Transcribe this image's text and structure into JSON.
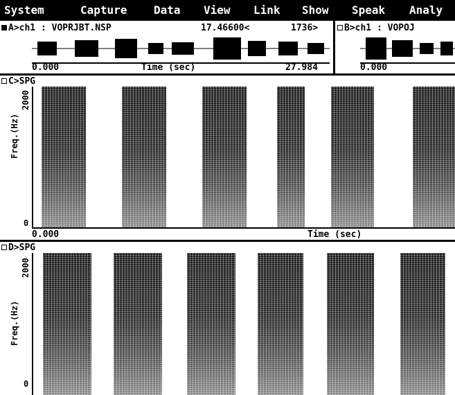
{
  "menu": {
    "items": [
      {
        "label": "System"
      },
      {
        "label": "Capture"
      },
      {
        "label": "Data"
      },
      {
        "label": "View"
      },
      {
        "label": "Link"
      },
      {
        "label": "Show"
      },
      {
        "label": "Speak"
      },
      {
        "label": "Analy"
      }
    ]
  },
  "paneA": {
    "header": "A>ch1 : VOPRJBT.NSP",
    "cursor_time": "17.46600<",
    "cursor_sample": "1736>",
    "x_start": "0.000",
    "x_label": "Time (sec)",
    "x_end": "27.984",
    "indicator": "filled-square-icon"
  },
  "paneB": {
    "header": "B>ch1 : VOPOJ",
    "x_start": "0.000",
    "indicator": "empty-square-icon"
  },
  "paneC": {
    "header": "C>SPG",
    "y_label": "Freq.(Hz)",
    "y_top": "2000",
    "y_bottom": "0",
    "x_start": "0.000",
    "x_label": "Time (sec)",
    "indicator": "empty-square-icon"
  },
  "paneD": {
    "header": "D>SPG",
    "y_label": "Freq.(Hz)",
    "y_top": "2000",
    "y_bottom": "0",
    "indicator": "empty-square-icon"
  },
  "colors": {
    "menubar_bg": "#000000",
    "menubar_fg": "#ffffff",
    "background": "#ffffff",
    "ink": "#000000"
  }
}
